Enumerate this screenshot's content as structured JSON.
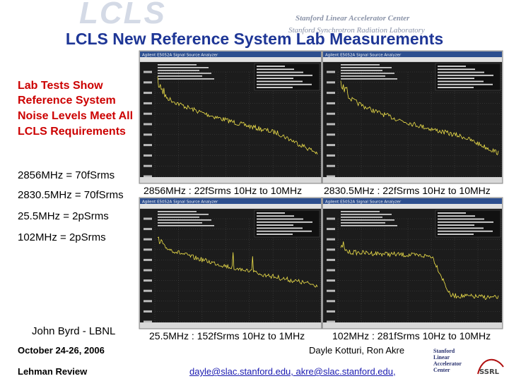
{
  "header": {
    "logo": "LCLS",
    "org1": "Stanford Linear Accelerator Center",
    "org2": "Stanford Synchrotron Radiation Laboratory",
    "title": "LCLS New Reference System Lab Measurements"
  },
  "summary": [
    "Lab Tests Show",
    "Reference System",
    "Noise Levels Meet All",
    "LCLS Requirements"
  ],
  "requirements": [
    "2856MHz = 70fSrms",
    "2830.5MHz = 70fSrms",
    "25.5MHz = 2pSrms",
    "102MHz = 2pSrms"
  ],
  "author": "John Byrd - LBNL",
  "screenshots": [
    {
      "window_title": "Agilent E5052A Signal Source Analyzer",
      "caption": "2856MHz : 22fSrms 10Hz to 10MHz"
    },
    {
      "window_title": "Agilent E5052A Signal Source Analyzer",
      "caption": "2830.5MHz : 22fSrms 10Hz to 10MHz"
    },
    {
      "window_title": "Agilent E5052A Signal Source Analyzer",
      "caption": "25.5MHz : 152fSrms 10Hz to 1MHz"
    },
    {
      "window_title": "Agilent E5052A Signal Source Analyzer",
      "caption": "102MHz : 281fSrms 10Hz to 10MHz"
    }
  ],
  "footer": {
    "date": "October 24-26, 2006",
    "event": "Lehman Review",
    "authors": "Dayle Kotturi, Ron Akre",
    "emails": "dayle@slac.stanford.edu, akre@slac.stanford.edu,",
    "logo": [
      "Stanford",
      "Linear",
      "Accelerator",
      "Center"
    ]
  }
}
